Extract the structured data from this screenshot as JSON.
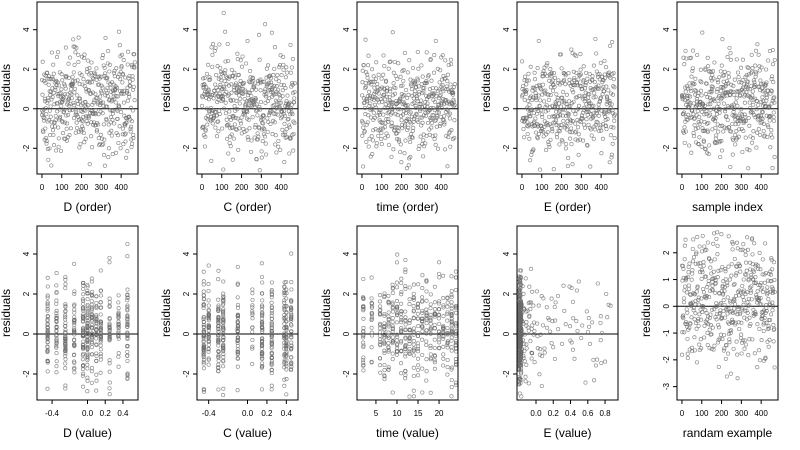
{
  "chart_data": [
    {
      "type": "scatter",
      "xlabel": "D (order)",
      "ylabel": "residuals",
      "xlim": [
        -25,
        485
      ],
      "ylim": [
        -3.3,
        5.4
      ],
      "xticks": [
        "0",
        "100",
        "200",
        "300",
        "400"
      ],
      "yticks": [
        "-2",
        "0",
        "2",
        "4"
      ],
      "reference_line_y": 0,
      "n_points": 470,
      "x_mode": "order"
    },
    {
      "type": "scatter",
      "xlabel": "C (order)",
      "ylabel": "residuals",
      "xlim": [
        -25,
        485
      ],
      "ylim": [
        -3.3,
        5.4
      ],
      "xticks": [
        "0",
        "100",
        "200",
        "300",
        "400"
      ],
      "yticks": [
        "-2",
        "0",
        "2",
        "4"
      ],
      "reference_line_y": 0,
      "n_points": 470,
      "x_mode": "order"
    },
    {
      "type": "scatter",
      "xlabel": "time (order)",
      "ylabel": "residuals",
      "xlim": [
        -25,
        485
      ],
      "ylim": [
        -3.3,
        5.4
      ],
      "xticks": [
        "0",
        "100",
        "200",
        "300",
        "400"
      ],
      "yticks": [
        "-2",
        "0",
        "2",
        "4"
      ],
      "reference_line_y": 0,
      "n_points": 470,
      "x_mode": "order"
    },
    {
      "type": "scatter",
      "xlabel": "E (order)",
      "ylabel": "residuals",
      "xlim": [
        -25,
        485
      ],
      "ylim": [
        -3.3,
        5.4
      ],
      "xticks": [
        "0",
        "100",
        "200",
        "300",
        "400"
      ],
      "yticks": [
        "-2",
        "0",
        "2",
        "4"
      ],
      "reference_line_y": 0,
      "n_points": 470,
      "x_mode": "order"
    },
    {
      "type": "scatter",
      "xlabel": "sample index",
      "ylabel": "residuals",
      "xlim": [
        -25,
        485
      ],
      "ylim": [
        -3.3,
        5.4
      ],
      "xticks": [
        "0",
        "100",
        "200",
        "300",
        "400"
      ],
      "yticks": [
        "-2",
        "0",
        "2",
        "4"
      ],
      "reference_line_y": 0,
      "n_points": 470,
      "x_mode": "order"
    },
    {
      "type": "scatter",
      "xlabel": "D (value)",
      "ylabel": "residuals",
      "xlim": [
        -0.57,
        0.57
      ],
      "ylim": [
        -3.3,
        5.4
      ],
      "xticks": [
        "-0.4",
        "0.0",
        "0.2",
        "0.4"
      ],
      "yticks": [
        "-2",
        "0",
        "2",
        "4"
      ],
      "reference_line_y": 0,
      "n_points": 470,
      "x_mode": "levels",
      "x_levels": [
        -0.45,
        -0.35,
        -0.25,
        -0.15,
        -0.05,
        0.0,
        0.05,
        0.1,
        0.15,
        0.25,
        0.35,
        0.45
      ]
    },
    {
      "type": "scatter",
      "xlabel": "C (value)",
      "ylabel": "residuals",
      "xlim": [
        -0.52,
        0.52
      ],
      "ylim": [
        -3.3,
        5.4
      ],
      "xticks": [
        "-0.4",
        "0.0",
        "0.2",
        "0.4"
      ],
      "yticks": [
        "-2",
        "0",
        "2",
        "4"
      ],
      "reference_line_y": 0,
      "n_points": 470,
      "x_mode": "levels",
      "x_levels": [
        -0.45,
        -0.4,
        -0.3,
        -0.25,
        -0.1,
        0.05,
        0.15,
        0.25,
        0.38,
        0.4,
        0.45
      ]
    },
    {
      "type": "scatter",
      "xlabel": "time (value)",
      "ylabel": "residuals",
      "xlim": [
        0.5,
        24.5
      ],
      "ylim": [
        -3.3,
        5.4
      ],
      "xticks": [
        "5",
        "10",
        "15",
        "20"
      ],
      "yticks": [
        "-2",
        "0",
        "2",
        "4"
      ],
      "reference_line_y": 0,
      "n_points": 470,
      "x_mode": "levels",
      "x_levels": [
        2,
        4,
        6,
        7,
        8,
        9,
        10,
        11,
        12,
        13,
        14,
        15,
        16,
        17,
        18,
        19,
        20,
        21,
        22,
        23,
        24
      ]
    },
    {
      "type": "scatter",
      "xlabel": "E (value)",
      "ylabel": "residuals",
      "xlim": [
        -0.22,
        0.95
      ],
      "ylim": [
        -3.3,
        5.4
      ],
      "xticks": [
        "0.0",
        "0.2",
        "0.4",
        "0.6",
        "0.8"
      ],
      "yticks": [
        "-2",
        "0",
        "2",
        "4"
      ],
      "reference_line_y": 0,
      "n_points": 470,
      "x_mode": "skewed",
      "x_min": -0.2,
      "x_max": 0.9
    },
    {
      "type": "scatter",
      "xlabel": "randam example",
      "ylabel": "residuals",
      "xlim": [
        -25,
        485
      ],
      "ylim": [
        -3.5,
        3.0
      ],
      "xticks": [
        "0",
        "100",
        "200",
        "300",
        "400"
      ],
      "yticks": [
        "-3",
        "-2",
        "-1",
        "0",
        "1",
        "2"
      ],
      "reference_line_y": 0,
      "n_points": 470,
      "x_mode": "order"
    }
  ]
}
